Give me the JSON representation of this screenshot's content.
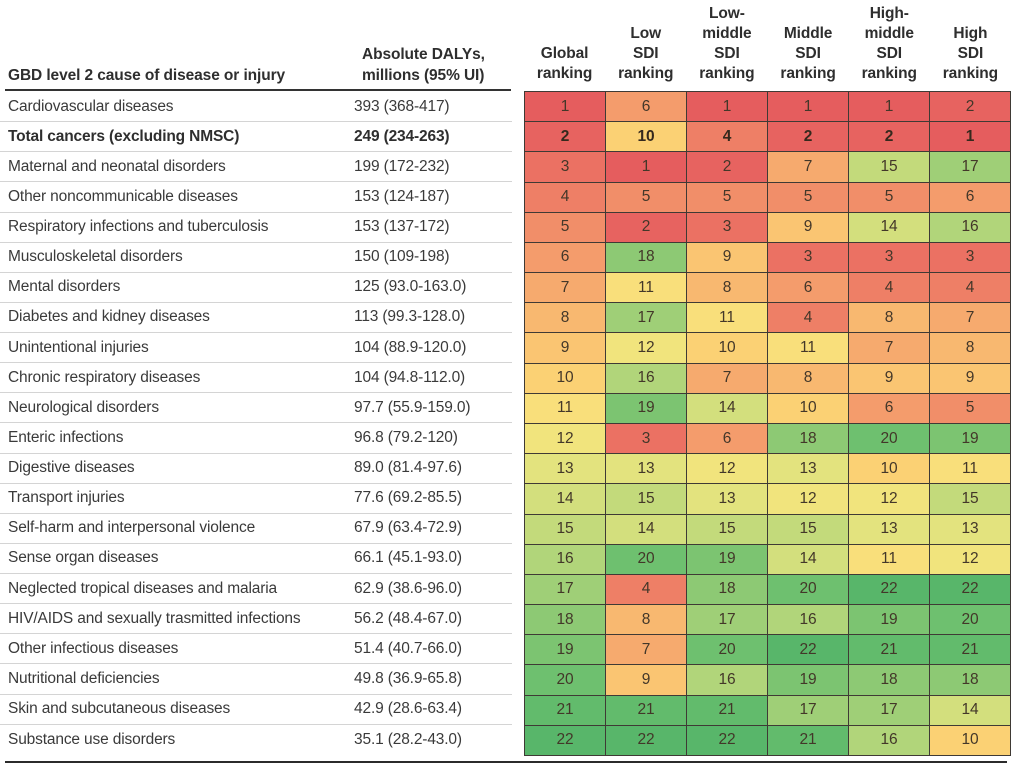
{
  "chart_data": {
    "type": "heatmap",
    "title": "",
    "row_header": "GBD level 2 cause of disease or injury",
    "value_header": "Absolute DALYs, millions (95% UI)",
    "value_header_lines": [
      "Absolute DALYs,",
      "millions (95% UI)"
    ],
    "columns": [
      {
        "id": "global",
        "label": "Global ranking",
        "lines": [
          "Global",
          "ranking"
        ]
      },
      {
        "id": "low-sdi",
        "label": "Low SDI ranking",
        "lines": [
          "Low",
          "SDI",
          "ranking"
        ]
      },
      {
        "id": "low-middle-sdi",
        "label": "Low-middle SDI ranking",
        "lines": [
          "Low-",
          "middle",
          "SDI",
          "ranking"
        ]
      },
      {
        "id": "middle-sdi",
        "label": "Middle SDI ranking",
        "lines": [
          "Middle",
          "SDI",
          "ranking"
        ]
      },
      {
        "id": "high-middle-sdi",
        "label": "High-middle SDI ranking",
        "lines": [
          "High-",
          "middle",
          "SDI",
          "ranking"
        ]
      },
      {
        "id": "high-sdi",
        "label": "High SDI ranking",
        "lines": [
          "High",
          "SDI",
          "ranking"
        ]
      }
    ],
    "rows": [
      {
        "cause": "Cardiovascular diseases",
        "dalys": "393 (368-417)",
        "bold": false,
        "rankings": [
          1,
          6,
          1,
          1,
          1,
          2
        ]
      },
      {
        "cause": "Total cancers (excluding NMSC)",
        "dalys": "249 (234-263)",
        "bold": true,
        "rankings": [
          2,
          10,
          4,
          2,
          2,
          1
        ]
      },
      {
        "cause": "Maternal and neonatal disorders",
        "dalys": "199 (172-232)",
        "bold": false,
        "rankings": [
          3,
          1,
          2,
          7,
          15,
          17
        ]
      },
      {
        "cause": "Other noncommunicable diseases",
        "dalys": "153 (124-187)",
        "bold": false,
        "rankings": [
          4,
          5,
          5,
          5,
          5,
          6
        ]
      },
      {
        "cause": "Respiratory infections and tuberculosis",
        "dalys": "153 (137-172)",
        "bold": false,
        "rankings": [
          5,
          2,
          3,
          9,
          14,
          16
        ]
      },
      {
        "cause": "Musculoskeletal disorders",
        "dalys": "150 (109-198)",
        "bold": false,
        "rankings": [
          6,
          18,
          9,
          3,
          3,
          3
        ]
      },
      {
        "cause": "Mental disorders",
        "dalys": "125 (93.0-163.0)",
        "bold": false,
        "rankings": [
          7,
          11,
          8,
          6,
          4,
          4
        ]
      },
      {
        "cause": "Diabetes and kidney diseases",
        "dalys": "113 (99.3-128.0)",
        "bold": false,
        "rankings": [
          8,
          17,
          11,
          4,
          8,
          7
        ]
      },
      {
        "cause": "Unintentional injuries",
        "dalys": "104 (88.9-120.0)",
        "bold": false,
        "rankings": [
          9,
          12,
          10,
          11,
          7,
          8
        ]
      },
      {
        "cause": "Chronic respiratory diseases",
        "dalys": "104 (94.8-112.0)",
        "bold": false,
        "rankings": [
          10,
          16,
          7,
          8,
          9,
          9
        ]
      },
      {
        "cause": "Neurological disorders",
        "dalys": "97.7 (55.9-159.0)",
        "bold": false,
        "rankings": [
          11,
          19,
          14,
          10,
          6,
          5
        ]
      },
      {
        "cause": "Enteric infections",
        "dalys": "96.8 (79.2-120)",
        "bold": false,
        "rankings": [
          12,
          3,
          6,
          18,
          20,
          19
        ]
      },
      {
        "cause": "Digestive diseases",
        "dalys": "89.0 (81.4-97.6)",
        "bold": false,
        "rankings": [
          13,
          13,
          12,
          13,
          10,
          11
        ]
      },
      {
        "cause": "Transport injuries",
        "dalys": "77.6 (69.2-85.5)",
        "bold": false,
        "rankings": [
          14,
          15,
          13,
          12,
          12,
          15
        ]
      },
      {
        "cause": "Self-harm and interpersonal violence",
        "dalys": "67.9 (63.4-72.9)",
        "bold": false,
        "rankings": [
          15,
          14,
          15,
          15,
          13,
          13
        ]
      },
      {
        "cause": "Sense organ diseases",
        "dalys": "66.1 (45.1-93.0)",
        "bold": false,
        "rankings": [
          16,
          20,
          19,
          14,
          11,
          12
        ]
      },
      {
        "cause": "Neglected tropical diseases and malaria",
        "dalys": "62.9 (38.6-96.0)",
        "bold": false,
        "rankings": [
          17,
          4,
          18,
          20,
          22,
          22
        ]
      },
      {
        "cause": "HIV/AIDS and sexually trasmitted infections",
        "dalys": "56.2 (48.4-67.0)",
        "bold": false,
        "rankings": [
          18,
          8,
          17,
          16,
          19,
          20
        ]
      },
      {
        "cause": "Other infectious diseases",
        "dalys": "51.4 (40.7-66.0)",
        "bold": false,
        "rankings": [
          19,
          7,
          20,
          22,
          21,
          21
        ]
      },
      {
        "cause": "Nutritional deficiencies",
        "dalys": "49.8 (36.9-65.8)",
        "bold": false,
        "rankings": [
          20,
          9,
          16,
          19,
          18,
          18
        ]
      },
      {
        "cause": "Skin and subcutaneous diseases",
        "dalys": "42.9 (28.6-63.4)",
        "bold": false,
        "rankings": [
          21,
          21,
          21,
          17,
          17,
          14
        ]
      },
      {
        "cause": "Substance use disorders",
        "dalys": "35.1 (28.2-43.0)",
        "bold": false,
        "rankings": [
          22,
          22,
          22,
          21,
          16,
          10
        ]
      }
    ],
    "scale": {
      "domain": [
        1,
        22
      ],
      "meaning": "rank 1 = red (highest burden), rank 22 = green (lowest burden)"
    },
    "layout": {
      "legend": "none",
      "grid": "dark 1px cell borders on ranking heatmap; light gray row separators on left columns"
    }
  },
  "heatmap": {
    "palette": [
      "#e55d5e",
      "#e76360",
      "#eb7163",
      "#ee7f66",
      "#f18e69",
      "#f49c6c",
      "#f6aa6e",
      "#f8b870",
      "#fac572",
      "#fbd174",
      "#f9df7b",
      "#f1e47d",
      "#e3e37e",
      "#d3df7d",
      "#c3da7b",
      "#b1d57a",
      "#9fcf77",
      "#8dc974",
      "#7cc471",
      "#6ec06f",
      "#62bb6c",
      "#58b66a"
    ]
  },
  "colors": {
    "background": "#ffffff",
    "header_rule": "#333333",
    "bottom_rule": "#2b2b2b",
    "row_separator": "#d4d4d4",
    "cell_border": "#3f3a35",
    "cell_text": "#433729",
    "body_text": "#3a3a3a"
  }
}
